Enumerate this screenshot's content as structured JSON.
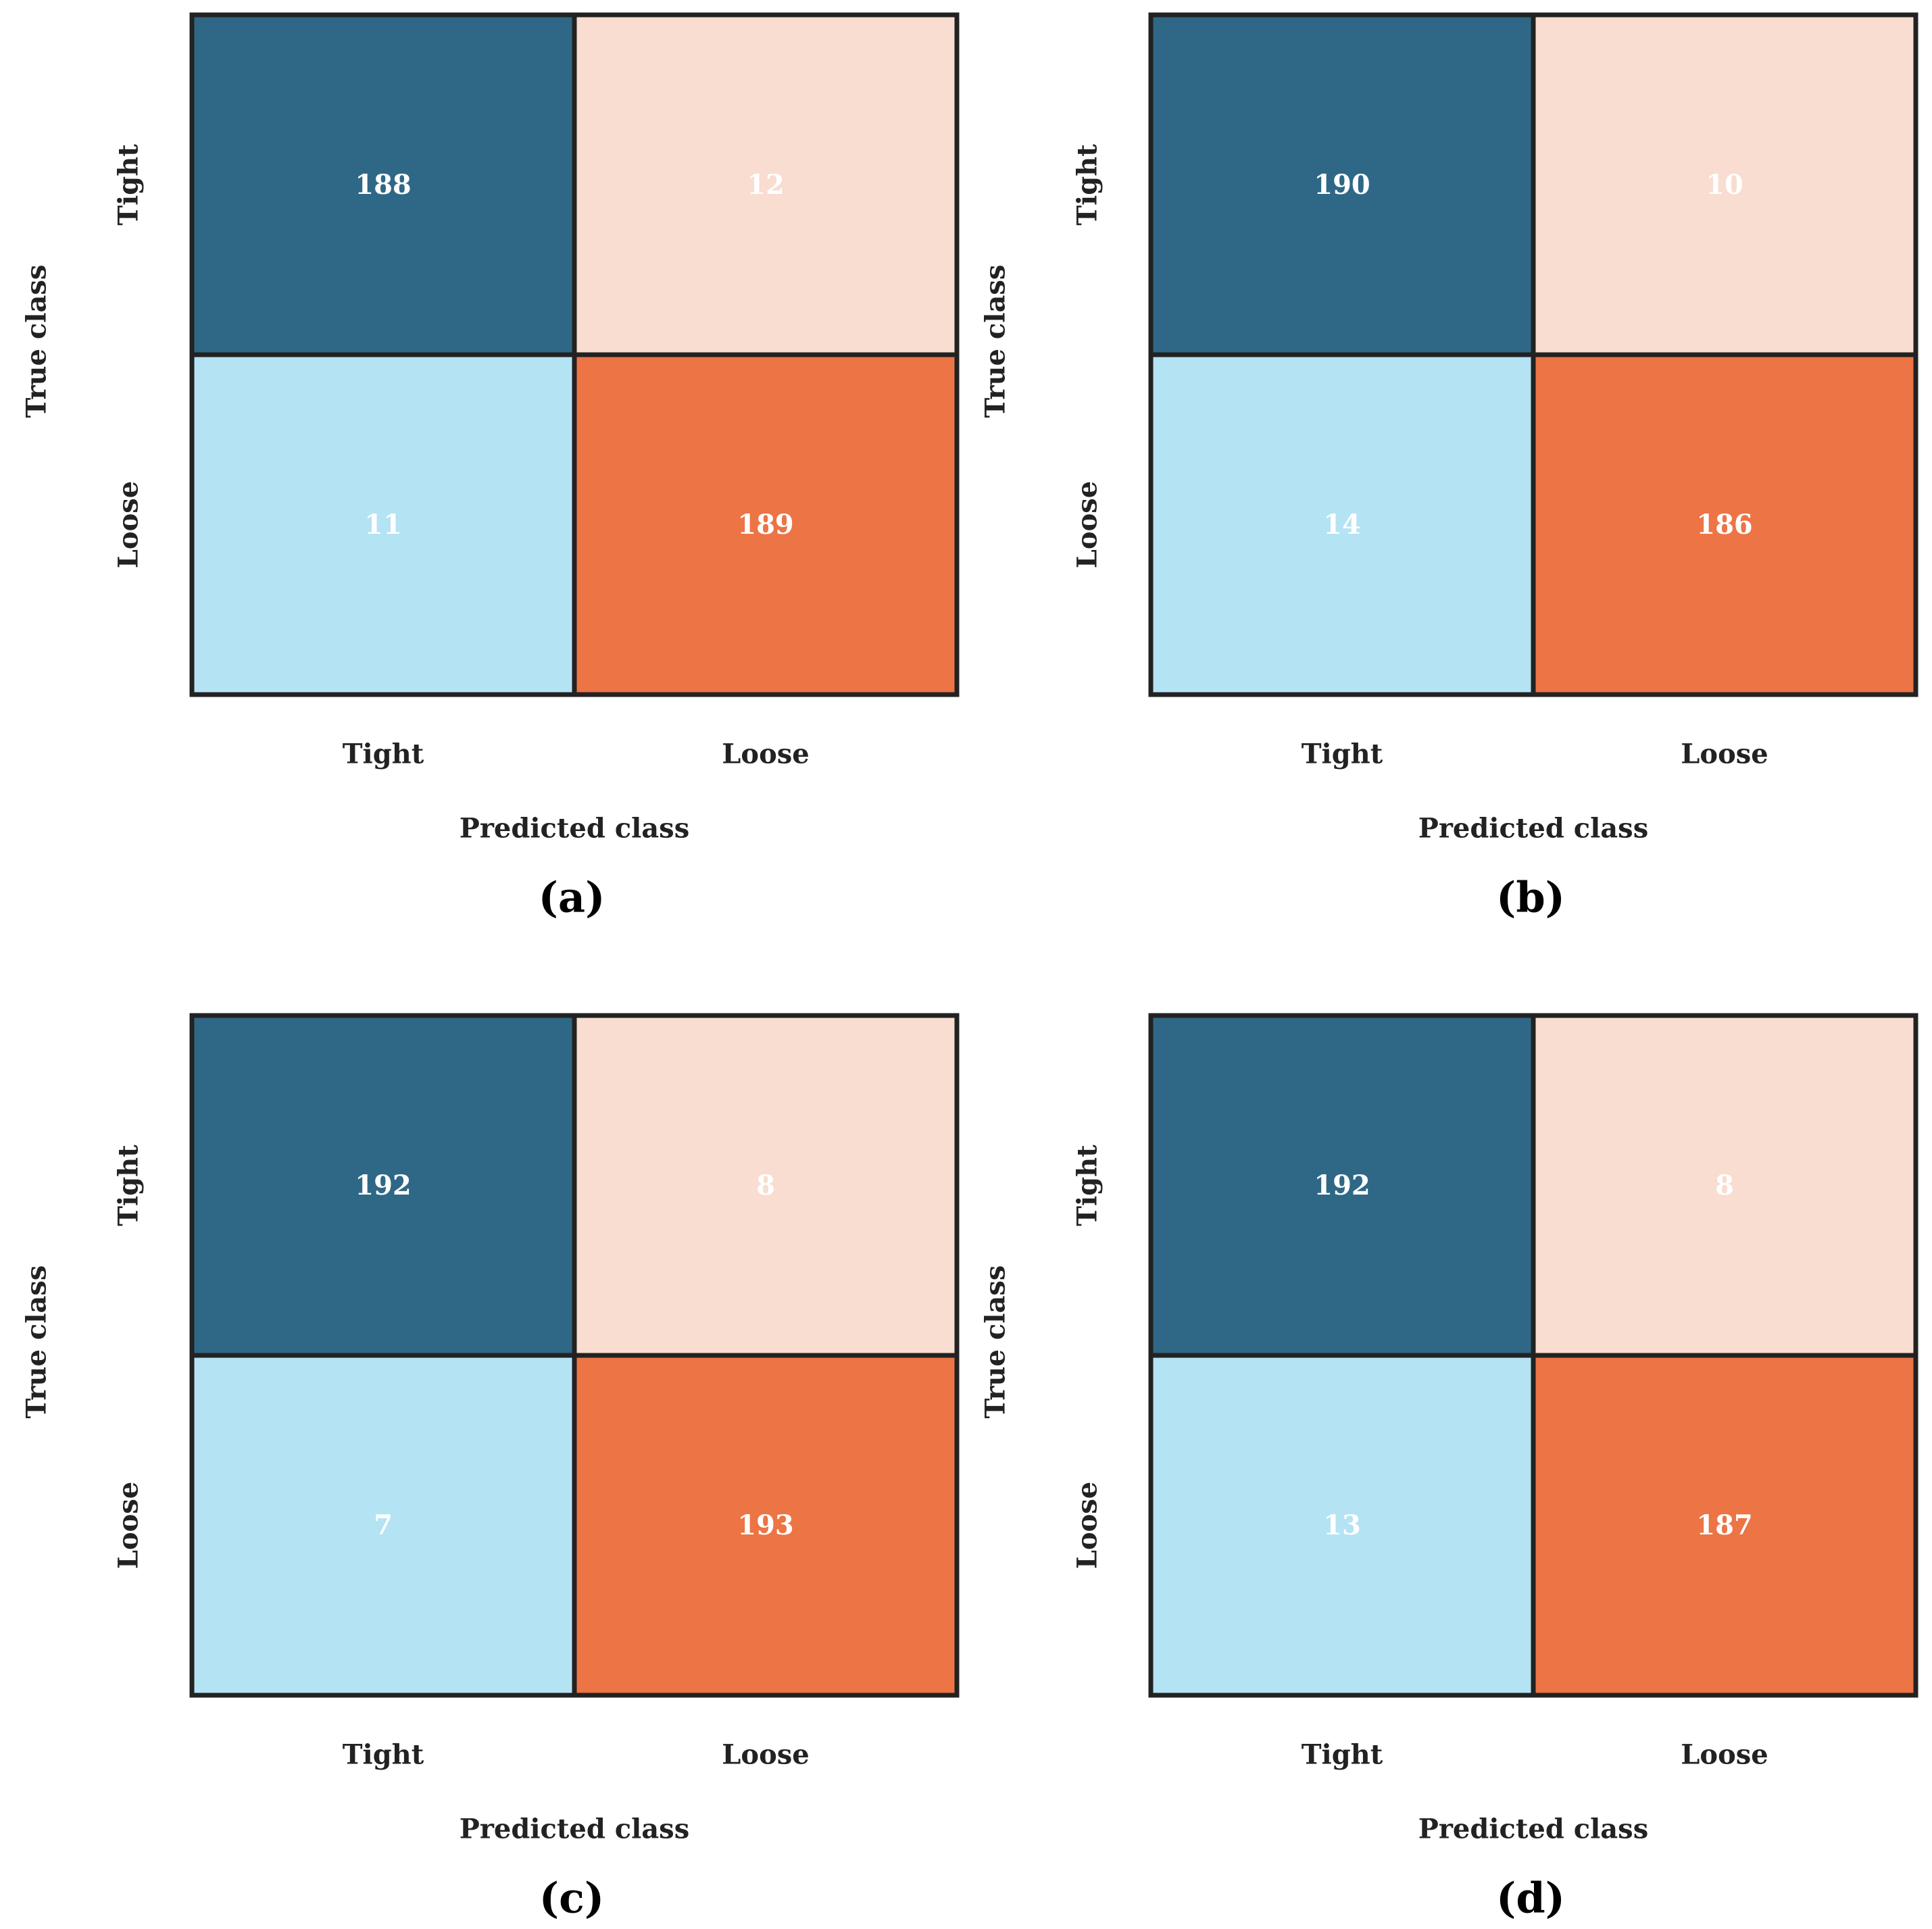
{
  "chart_data": [
    {
      "type": "heatmap",
      "panel_label": "(a)",
      "row_labels": [
        "Tight",
        "Loose"
      ],
      "col_labels": [
        "Tight",
        "Loose"
      ],
      "values": [
        [
          188,
          12
        ],
        [
          11,
          189
        ]
      ],
      "xlabel": "Predicted class",
      "ylabel": "True class"
    },
    {
      "type": "heatmap",
      "panel_label": "(b)",
      "row_labels": [
        "Tight",
        "Loose"
      ],
      "col_labels": [
        "Tight",
        "Loose"
      ],
      "values": [
        [
          190,
          10
        ],
        [
          14,
          186
        ]
      ],
      "xlabel": "Predicted class",
      "ylabel": "True class"
    },
    {
      "type": "heatmap",
      "panel_label": "(c)",
      "row_labels": [
        "Tight",
        "Loose"
      ],
      "col_labels": [
        "Tight",
        "Loose"
      ],
      "values": [
        [
          192,
          8
        ],
        [
          7,
          193
        ]
      ],
      "xlabel": "Predicted class",
      "ylabel": "True class"
    },
    {
      "type": "heatmap",
      "panel_label": "(d)",
      "row_labels": [
        "Tight",
        "Loose"
      ],
      "col_labels": [
        "Tight",
        "Loose"
      ],
      "values": [
        [
          192,
          8
        ],
        [
          13,
          187
        ]
      ],
      "xlabel": "Predicted class",
      "ylabel": "True class"
    }
  ],
  "colors": {
    "true_tight_pred_tight": "#2f6887",
    "true_tight_pred_loose": "#f8ddd0",
    "true_loose_pred_tight": "#b4e3f4",
    "true_loose_pred_loose": "#ec7445",
    "border": "#222222"
  }
}
